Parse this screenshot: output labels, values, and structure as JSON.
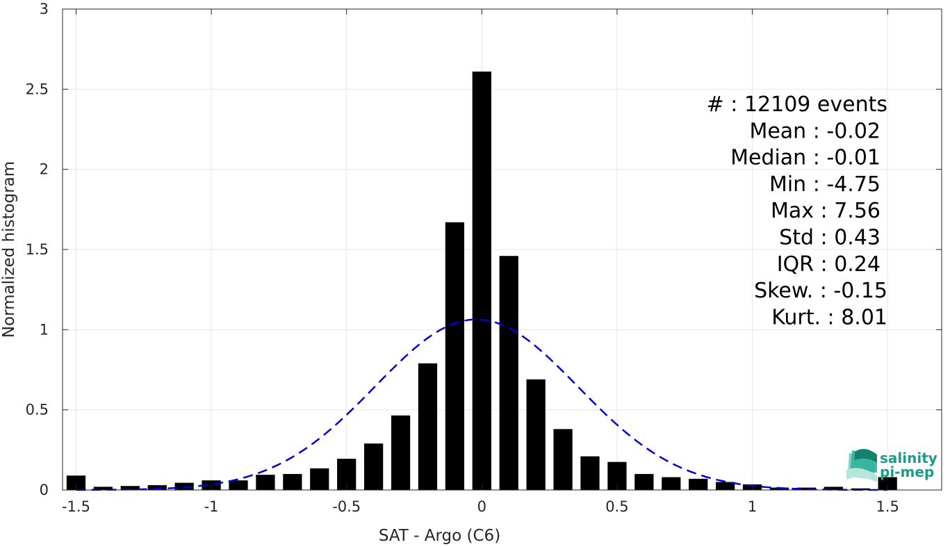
{
  "chart_data": {
    "type": "bar",
    "xlabel": "SAT - Argo (C6)",
    "ylabel": "Normalized histogram",
    "xlim": [
      -1.55,
      1.7
    ],
    "ylim": [
      0,
      3
    ],
    "xticks": [
      "-1.5",
      "-1",
      "-0.5",
      "0",
      "0.5",
      "1",
      "1.5"
    ],
    "xtick_values": [
      -1.5,
      -1,
      -0.5,
      0,
      0.5,
      1,
      1.5
    ],
    "yticks": [
      "0",
      "0.5",
      "1",
      "1.5",
      "2",
      "2.5",
      "3"
    ],
    "ytick_values": [
      0,
      0.5,
      1,
      1.5,
      2,
      2.5,
      3
    ],
    "grid": true,
    "bin_centers": [
      -1.5,
      -1.4,
      -1.3,
      -1.2,
      -1.1,
      -1.0,
      -0.9,
      -0.8,
      -0.7,
      -0.6,
      -0.5,
      -0.4,
      -0.3,
      -0.2,
      -0.1,
      0.0,
      0.1,
      0.2,
      0.3,
      0.4,
      0.5,
      0.6,
      0.7,
      0.8,
      0.9,
      1.0,
      1.1,
      1.2,
      1.3,
      1.4,
      1.5
    ],
    "values": [
      0.09,
      0.02,
      0.025,
      0.03,
      0.045,
      0.06,
      0.06,
      0.095,
      0.1,
      0.135,
      0.195,
      0.29,
      0.465,
      0.79,
      1.67,
      2.61,
      1.46,
      0.69,
      0.38,
      0.21,
      0.175,
      0.1,
      0.08,
      0.07,
      0.05,
      0.035,
      0.015,
      0.015,
      0.02,
      0.01,
      0.08
    ],
    "bar_color": "#000000",
    "fit": {
      "type": "gaussian",
      "mean": -0.02,
      "std": 0.375,
      "color": "#0000dd",
      "style": "dashed"
    },
    "stats": [
      "#  : 12109 events",
      "Mean : -0.02",
      "Median : -0.01",
      "Min : -4.75",
      "Max : 7.56",
      "Std : 0.43",
      "IQR : 0.24",
      "Skew. : -0.15",
      "Kurt. : 8.01"
    ]
  },
  "logo": {
    "line1": "salinity",
    "line2": "pi-mep",
    "color": "#1a9e8a"
  }
}
